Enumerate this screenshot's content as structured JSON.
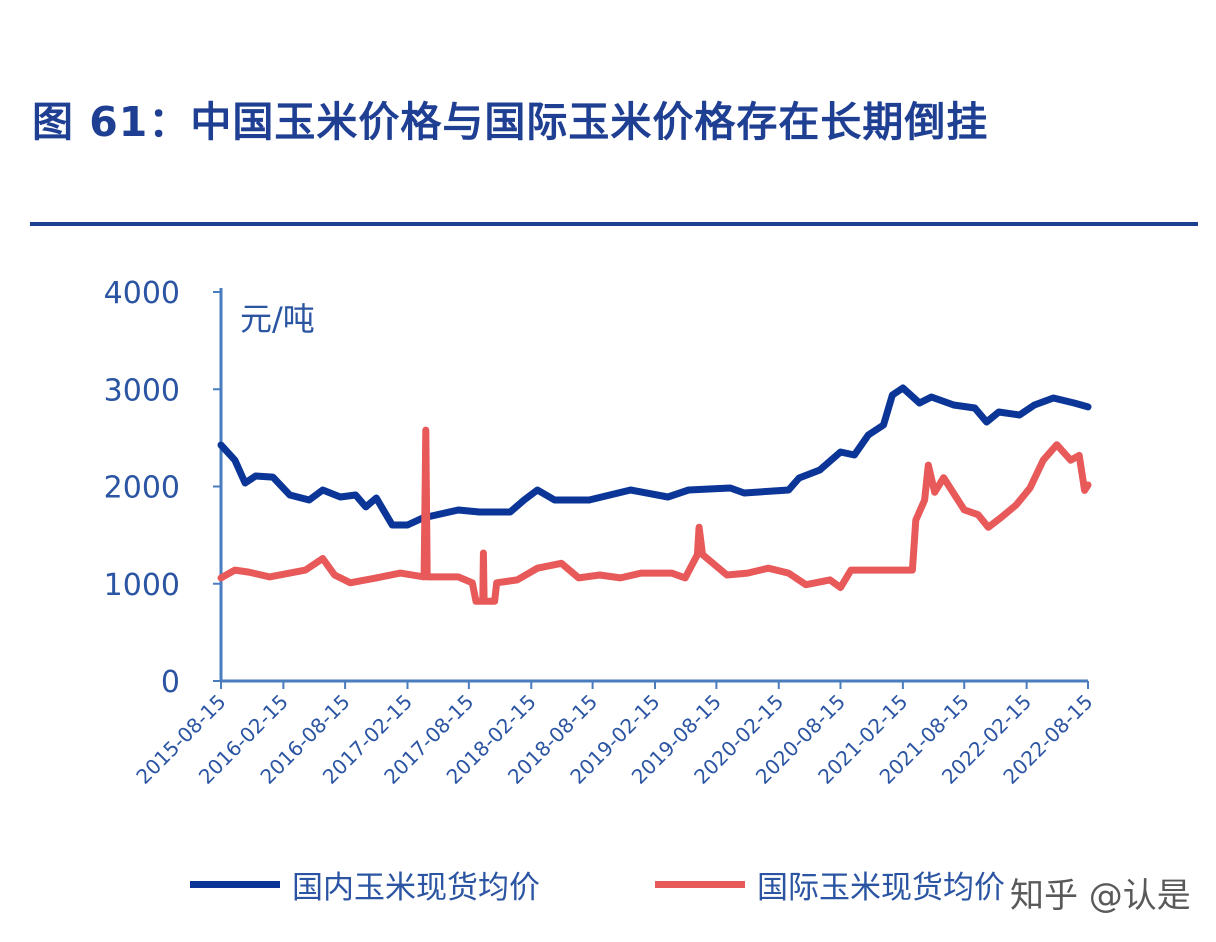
{
  "title": "图 61：中国玉米价格与国际玉米价格存在长期倒挂",
  "watermark": "知乎 @认是",
  "chart_data": {
    "type": "line",
    "title": "图 61：中国玉米价格与国际玉米价格存在长期倒挂",
    "ylabel": "元/吨",
    "ylim": [
      0,
      4000
    ],
    "yticks": [
      "0",
      "1000",
      "2000",
      "3000",
      "4000"
    ],
    "xlim": [
      "2015-08-15",
      "2022-08-15"
    ],
    "xticks": [
      "2015-08-15",
      "2016-02-15",
      "2016-08-15",
      "2017-02-15",
      "2017-08-15",
      "2018-02-15",
      "2018-08-15",
      "2019-02-15",
      "2019-08-15",
      "2020-02-15",
      "2020-08-15",
      "2021-02-15",
      "2021-08-15",
      "2022-02-15",
      "2022-08-15"
    ],
    "grid": false,
    "legend": "bottom",
    "series": [
      {
        "name": "国内玉米现货均价",
        "color": "#0b3596",
        "points": [
          [
            "2015-08-15",
            2427
          ],
          [
            "2015-09-25",
            2270
          ],
          [
            "2015-10-25",
            2036
          ],
          [
            "2015-11-25",
            2108
          ],
          [
            "2016-01-15",
            2097
          ],
          [
            "2016-03-05",
            1913
          ],
          [
            "2016-05-01",
            1861
          ],
          [
            "2016-06-10",
            1964
          ],
          [
            "2016-08-01",
            1892
          ],
          [
            "2016-09-15",
            1913
          ],
          [
            "2016-10-15",
            1790
          ],
          [
            "2016-11-15",
            1882
          ],
          [
            "2017-01-01",
            1604
          ],
          [
            "2017-02-15",
            1604
          ],
          [
            "2017-04-01",
            1676
          ],
          [
            "2017-07-15",
            1758
          ],
          [
            "2017-09-15",
            1738
          ],
          [
            "2017-12-15",
            1738
          ],
          [
            "2018-01-25",
            1861
          ],
          [
            "2018-03-05",
            1964
          ],
          [
            "2018-04-25",
            1861
          ],
          [
            "2018-08-05",
            1861
          ],
          [
            "2018-12-05",
            1964
          ],
          [
            "2019-03-25",
            1892
          ],
          [
            "2019-05-25",
            1964
          ],
          [
            "2019-09-25",
            1985
          ],
          [
            "2019-11-05",
            1933
          ],
          [
            "2020-03-15",
            1964
          ],
          [
            "2020-04-15",
            2087
          ],
          [
            "2020-06-15",
            2170
          ],
          [
            "2020-08-15",
            2355
          ],
          [
            "2020-09-25",
            2324
          ],
          [
            "2020-11-05",
            2530
          ],
          [
            "2020-12-20",
            2632
          ],
          [
            "2021-01-15",
            2941
          ],
          [
            "2021-02-15",
            3013
          ],
          [
            "2021-04-05",
            2859
          ],
          [
            "2021-05-10",
            2920
          ],
          [
            "2021-07-15",
            2838
          ],
          [
            "2021-09-15",
            2807
          ],
          [
            "2021-10-20",
            2663
          ],
          [
            "2021-11-25",
            2766
          ],
          [
            "2022-01-25",
            2735
          ],
          [
            "2022-03-10",
            2838
          ],
          [
            "2022-05-05",
            2910
          ],
          [
            "2022-07-05",
            2859
          ],
          [
            "2022-08-15",
            2818
          ]
        ]
      },
      {
        "name": "国际玉米现货均价",
        "color": "#e8595a",
        "points": [
          [
            "2015-08-15",
            1060
          ],
          [
            "2015-09-25",
            1140
          ],
          [
            "2015-11-05",
            1120
          ],
          [
            "2016-01-05",
            1070
          ],
          [
            "2016-03-05",
            1110
          ],
          [
            "2016-04-20",
            1140
          ],
          [
            "2016-06-10",
            1260
          ],
          [
            "2016-07-15",
            1090
          ],
          [
            "2016-08-30",
            1010
          ],
          [
            "2016-11-15",
            1060
          ],
          [
            "2017-01-25",
            1110
          ],
          [
            "2017-04-05",
            1070
          ],
          [
            "2017-04-10",
            2580
          ],
          [
            "2017-04-14",
            1070
          ],
          [
            "2017-07-15",
            1070
          ],
          [
            "2017-08-25",
            1010
          ],
          [
            "2017-09-05",
            820
          ],
          [
            "2017-09-25",
            820
          ],
          [
            "2017-09-27",
            1316
          ],
          [
            "2017-09-29",
            820
          ],
          [
            "2017-10-30",
            820
          ],
          [
            "2017-11-05",
            1010
          ],
          [
            "2018-01-05",
            1040
          ],
          [
            "2018-03-05",
            1160
          ],
          [
            "2018-05-15",
            1210
          ],
          [
            "2018-07-05",
            1060
          ],
          [
            "2018-09-05",
            1090
          ],
          [
            "2018-11-05",
            1060
          ],
          [
            "2019-01-05",
            1110
          ],
          [
            "2019-04-05",
            1110
          ],
          [
            "2019-05-15",
            1060
          ],
          [
            "2019-06-20",
            1300
          ],
          [
            "2019-06-25",
            1580
          ],
          [
            "2019-07-05",
            1300
          ],
          [
            "2019-09-15",
            1090
          ],
          [
            "2019-11-15",
            1110
          ],
          [
            "2020-01-15",
            1160
          ],
          [
            "2020-03-15",
            1110
          ],
          [
            "2020-05-05",
            990
          ],
          [
            "2020-07-15",
            1040
          ],
          [
            "2020-08-15",
            960
          ],
          [
            "2020-09-15",
            1140
          ],
          [
            "2021-03-15",
            1140
          ],
          [
            "2021-03-25",
            1655
          ],
          [
            "2021-04-20",
            1860
          ],
          [
            "2021-05-01",
            2220
          ],
          [
            "2021-05-20",
            1940
          ],
          [
            "2021-06-15",
            2090
          ],
          [
            "2021-08-15",
            1760
          ],
          [
            "2021-09-25",
            1710
          ],
          [
            "2021-10-25",
            1580
          ],
          [
            "2021-12-05",
            1690
          ],
          [
            "2022-01-15",
            1810
          ],
          [
            "2022-02-25",
            1985
          ],
          [
            "2022-04-05",
            2270
          ],
          [
            "2022-05-15",
            2430
          ],
          [
            "2022-06-25",
            2270
          ],
          [
            "2022-07-20",
            2320
          ],
          [
            "2022-08-05",
            1960
          ],
          [
            "2022-08-15",
            2015
          ]
        ]
      }
    ]
  }
}
